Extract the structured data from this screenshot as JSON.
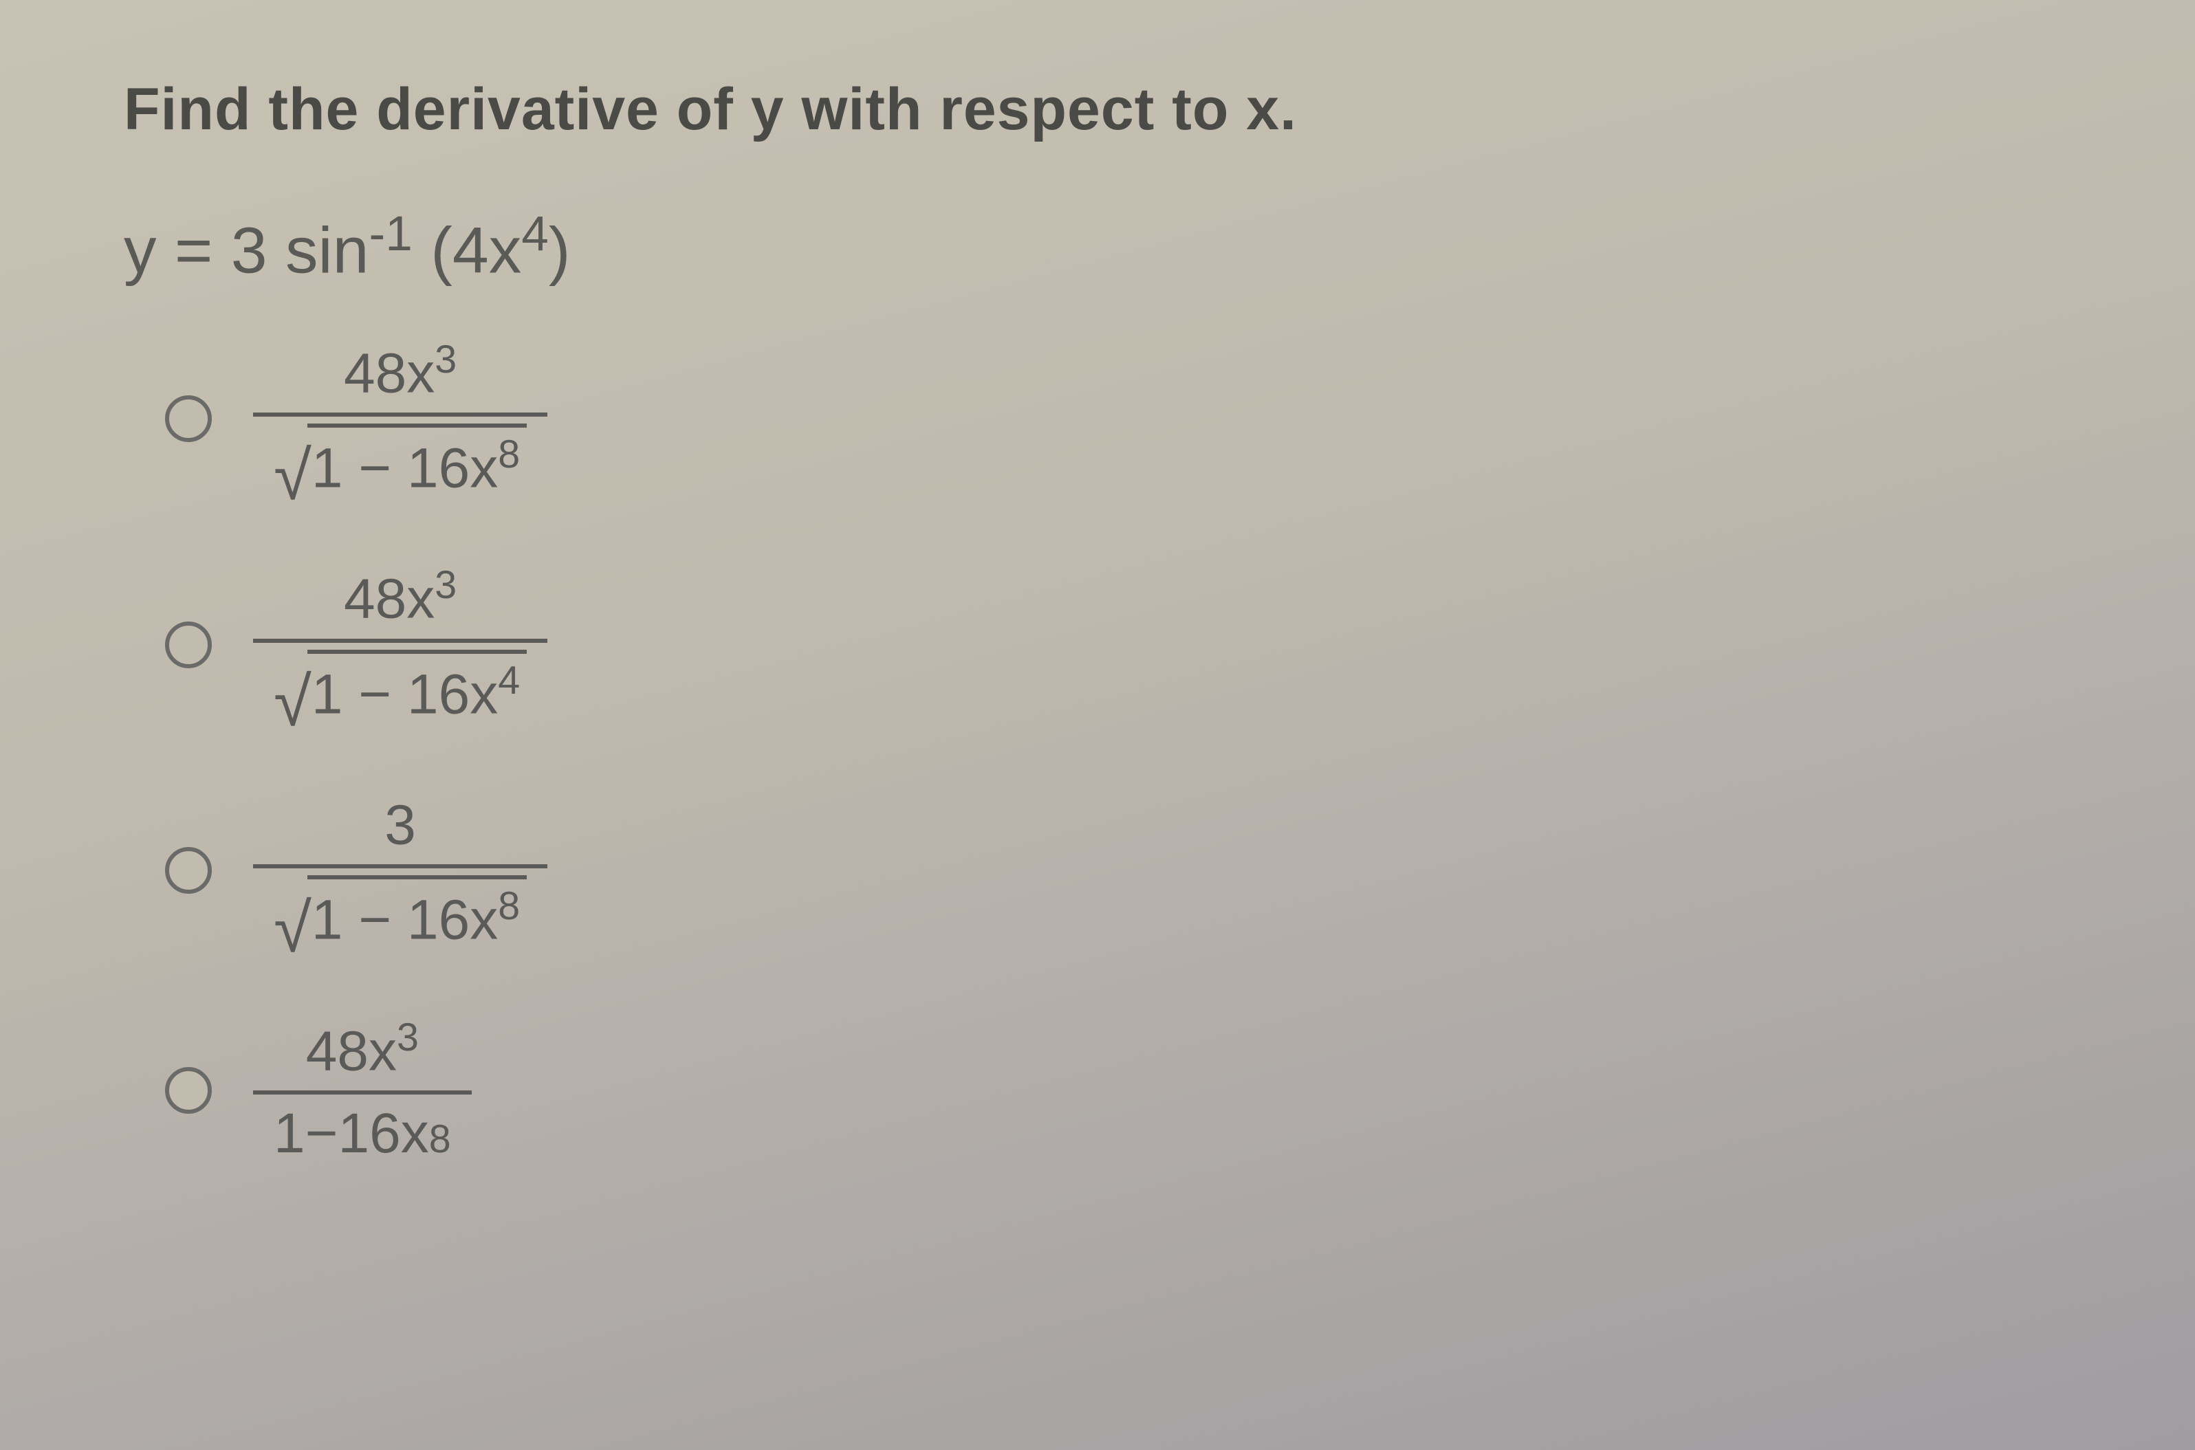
{
  "prompt": "Find the derivative of y with respect to x.",
  "equation": {
    "lhs": "y",
    "eq": "=",
    "coef": "3",
    "func": "sin",
    "func_sup": "-1",
    "arg_open": "(",
    "arg_coef": "4x",
    "arg_sup": "4",
    "arg_close": ")"
  },
  "choices": [
    {
      "numerator": {
        "coef": "48x",
        "sup": "3"
      },
      "denominator": {
        "has_sqrt": true,
        "inside_a": "1",
        "inside_op": "−",
        "inside_b": "16x",
        "inside_sup": "8"
      }
    },
    {
      "numerator": {
        "coef": "48x",
        "sup": "3"
      },
      "denominator": {
        "has_sqrt": true,
        "inside_a": "1",
        "inside_op": "−",
        "inside_b": "16x",
        "inside_sup": "4"
      }
    },
    {
      "numerator": {
        "coef": "3",
        "sup": ""
      },
      "denominator": {
        "has_sqrt": true,
        "inside_a": "1",
        "inside_op": "−",
        "inside_b": "16x",
        "inside_sup": "8"
      }
    },
    {
      "numerator": {
        "coef": "48x",
        "sup": "3"
      },
      "denominator": {
        "has_sqrt": false,
        "inside_a": "1",
        "inside_op": "−",
        "inside_b": "16x",
        "inside_sup": "8"
      }
    }
  ],
  "style": {
    "prompt_fontsize": 86,
    "equation_fontsize": 95,
    "fraction_fontsize": 82,
    "text_color": "#4a4a46",
    "math_color": "#5a5a58",
    "radio_border": "#6a6a68",
    "bg_gradient_from": "#c8c2b4",
    "bg_gradient_to": "#a09ca0"
  }
}
